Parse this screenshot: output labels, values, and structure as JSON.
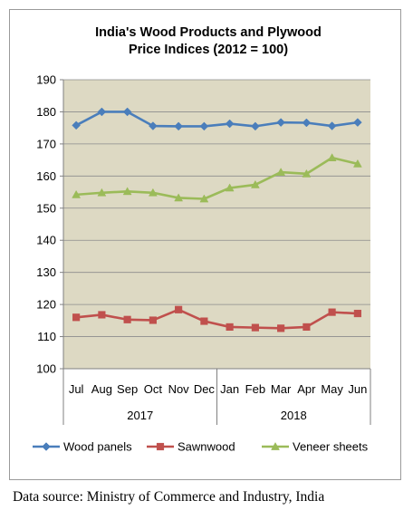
{
  "chart_data": {
    "type": "line",
    "title": [
      "India's Wood Products and Plywood",
      "Price Indices (2012 = 100)"
    ],
    "categories": [
      "Jul",
      "Aug",
      "Sep",
      "Oct",
      "Nov",
      "Dec",
      "Jan",
      "Feb",
      "Mar",
      "Apr",
      "May",
      "Jun"
    ],
    "year_groups": [
      {
        "label": "2017",
        "from": 0,
        "to": 5
      },
      {
        "label": "2018",
        "from": 6,
        "to": 11
      }
    ],
    "ylim": [
      100,
      190
    ],
    "yticks": [
      100,
      110,
      120,
      130,
      140,
      150,
      160,
      170,
      180,
      190
    ],
    "grid": "horizontal",
    "legend_position": "bottom",
    "series": [
      {
        "name": "Wood panels",
        "color": "#4a7ebb",
        "marker": "diamond",
        "values": [
          175.8,
          180.0,
          180.0,
          175.6,
          175.5,
          175.5,
          176.3,
          175.5,
          176.7,
          176.6,
          175.6,
          176.7
        ]
      },
      {
        "name": "Sawnwood",
        "color": "#c0504d",
        "marker": "square",
        "values": [
          116.0,
          116.8,
          115.3,
          115.1,
          118.4,
          114.8,
          113.0,
          112.8,
          112.6,
          113.0,
          117.6,
          117.2
        ]
      },
      {
        "name": "Veneer sheets",
        "color": "#9bbb59",
        "marker": "triangle",
        "values": [
          154.2,
          154.8,
          155.2,
          154.8,
          153.2,
          152.9,
          156.3,
          157.3,
          161.2,
          160.7,
          165.7,
          163.8
        ]
      }
    ],
    "plot_background": "#ddd9c3"
  },
  "source": "Data source: Ministry of Commerce and Industry, India"
}
